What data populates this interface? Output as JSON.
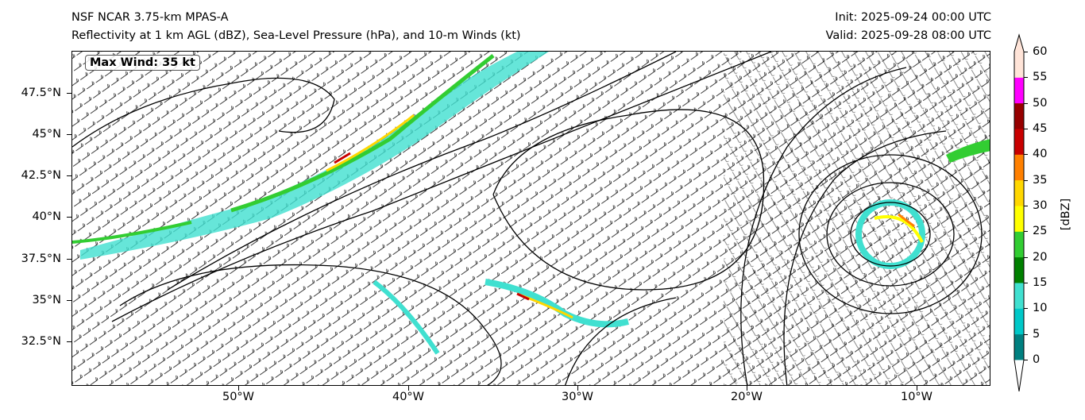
{
  "title": {
    "left_line1": "NSF NCAR 3.75-km MPAS-A",
    "left_line2": "Reflectivity at 1 km AGL (dBZ), Sea-Level Pressure (hPa), and 10-m Winds (kt)",
    "right_line1": "Init: 2025-09-24 00:00 UTC",
    "right_line2": "Valid: 2025-09-28 08:00 UTC"
  },
  "annotation": {
    "max_wind": "Max Wind: 35 kt"
  },
  "axes": {
    "lat_ticks": [
      "47.5°N",
      "45°N",
      "42.5°N",
      "40°N",
      "37.5°N",
      "35°N",
      "32.5°N"
    ],
    "lon_ticks": [
      "50°W",
      "40°W",
      "30°W",
      "20°W",
      "10°W"
    ]
  },
  "colorbar": {
    "label": "[dBZ]",
    "ticks": [
      "0",
      "5",
      "10",
      "15",
      "20",
      "25",
      "30",
      "35",
      "40",
      "45",
      "50",
      "55",
      "60"
    ],
    "colors": [
      "#008080",
      "#00c8c8",
      "#40e0d0",
      "#008000",
      "#32cd32",
      "#ffff00",
      "#ffd700",
      "#ff8000",
      "#c80000",
      "#960000",
      "#ff00ff",
      "#ffe4d8"
    ],
    "under_color": "#ffffff"
  }
}
